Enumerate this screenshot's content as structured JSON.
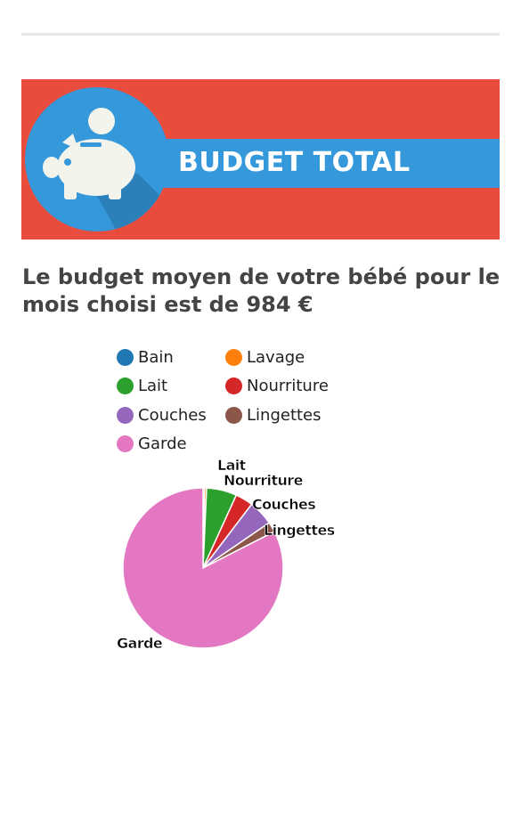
{
  "banner": {
    "text": "BUDGET TOTAL",
    "icon": "piggy-bank-icon",
    "colors": {
      "background": "#e84c3d",
      "stripe": "#3498db",
      "circle": "#3498db",
      "icon": "#f2f4ec"
    }
  },
  "heading": "Le budget moyen de votre bébé pour le mois choisi est de 984 €",
  "chart_data": {
    "type": "pie",
    "title": "",
    "legend_position": "top",
    "slices": [
      {
        "name": "Bain",
        "value": 3,
        "color": "#1f77b4",
        "label": ""
      },
      {
        "name": "Lavage",
        "value": 4,
        "color": "#ff7f0e",
        "label": ""
      },
      {
        "name": "Lait",
        "value": 60,
        "color": "#2ca02c",
        "label": "Lait"
      },
      {
        "name": "Nourriture",
        "value": 35,
        "color": "#d62728",
        "label": "Nourriture"
      },
      {
        "name": "Couches",
        "value": 50,
        "color": "#9467bd",
        "label": "Couches"
      },
      {
        "name": "Lingettes",
        "value": 20,
        "color": "#8c564b",
        "label": "Lingettes"
      },
      {
        "name": "Garde",
        "value": 812,
        "color": "#e377c2",
        "label": "Garde"
      }
    ]
  }
}
